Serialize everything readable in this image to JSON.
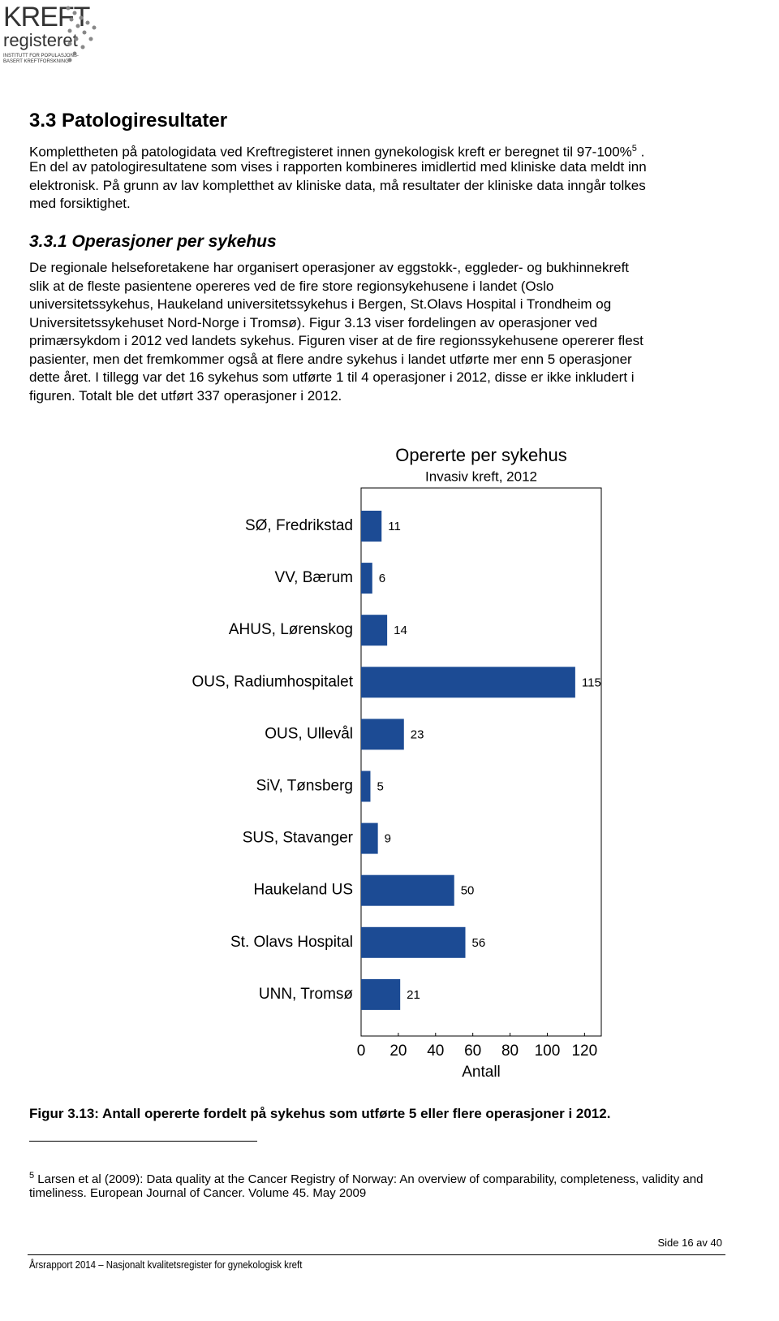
{
  "logo": {
    "name": "KREFT",
    "sub": "registeret",
    "tagline_1": "INSTITUTT FOR POPULASJONS-",
    "tagline_2": "BASERT KREFTFORSKNING"
  },
  "section": {
    "heading": "3.3  Patologiresultater",
    "para1_start": "Komplettheten på patologidata ved Kreftregisteret innen gynekologisk kreft er beregnet til 97-100%",
    "para1_ref": "5",
    "para1_end": ".",
    "para1_lines": [
      "En del av patologiresultatene som vises i rapporten kombineres imidlertid med kliniske data meldt inn",
      "elektronisk. På grunn av lav kompletthet av kliniske data, må resultater der kliniske data inngår tolkes",
      "med forsiktighet."
    ],
    "subheading": "3.3.1  Operasjoner per sykehus",
    "para2_lines": [
      "De regionale helseforetakene har organisert operasjoner av eggstokk-, eggleder- og bukhinnekreft",
      "slik at de fleste pasientene opereres ved de fire store regionsykehusene i landet (Oslo",
      "universitetssykehus, Haukeland universitetssykehus i Bergen, St.Olavs Hospital i Trondheim og",
      "Universitetssykehuset Nord-Norge i Tromsø). Figur 3.13 viser fordelingen av operasjoner ved",
      "primærsykdom i 2012 ved landets sykehus. Figuren viser at de fire regionssykehusene opererer flest",
      "pasienter, men det fremkommer også at flere andre sykehus i landet utførte mer enn 5 operasjoner",
      "dette året. I tillegg var det 16 sykehus som utførte 1 til 4 operasjoner i 2012, disse er ikke inkludert i",
      "figuren. Totalt ble det utført 337 operasjoner i 2012."
    ]
  },
  "chart_data": {
    "type": "bar",
    "orientation": "horizontal",
    "title": "Opererte per sykehus",
    "subtitle": "Invasiv kreft, 2012",
    "x_label": "Antall",
    "categories": [
      "SØ, Fredrikstad",
      "VV, Bærum",
      "AHUS, Lørenskog",
      "OUS, Radiumhospitalet",
      "OUS, Ullevål",
      "SiV, Tønsberg",
      "SUS, Stavanger",
      "Haukeland US",
      "St. Olavs Hospital",
      "UNN, Tromsø"
    ],
    "values": [
      11,
      6,
      14,
      115,
      23,
      5,
      9,
      50,
      56,
      21
    ],
    "color": "#1c4b94",
    "xlim": [
      0,
      129
    ],
    "xticks": [
      0,
      20,
      40,
      60,
      80,
      100,
      120
    ],
    "grid": false
  },
  "caption": "Figur 3.13: Antall opererte fordelt på sykehus som utførte 5 eller flere operasjoner i 2012.",
  "footnote": {
    "ref": "5",
    "line1": "Larsen et al (2009): Data quality at the Cancer Registry of Norway: An overview of comparability, completeness, validity and",
    "line2": "timeliness. European Journal of Cancer. Volume 45. May 2009"
  },
  "footer": {
    "page": "Side 16 av 40",
    "report": "Årsrapport 2014 – Nasjonalt kvalitetsregister for gynekologisk kreft"
  }
}
